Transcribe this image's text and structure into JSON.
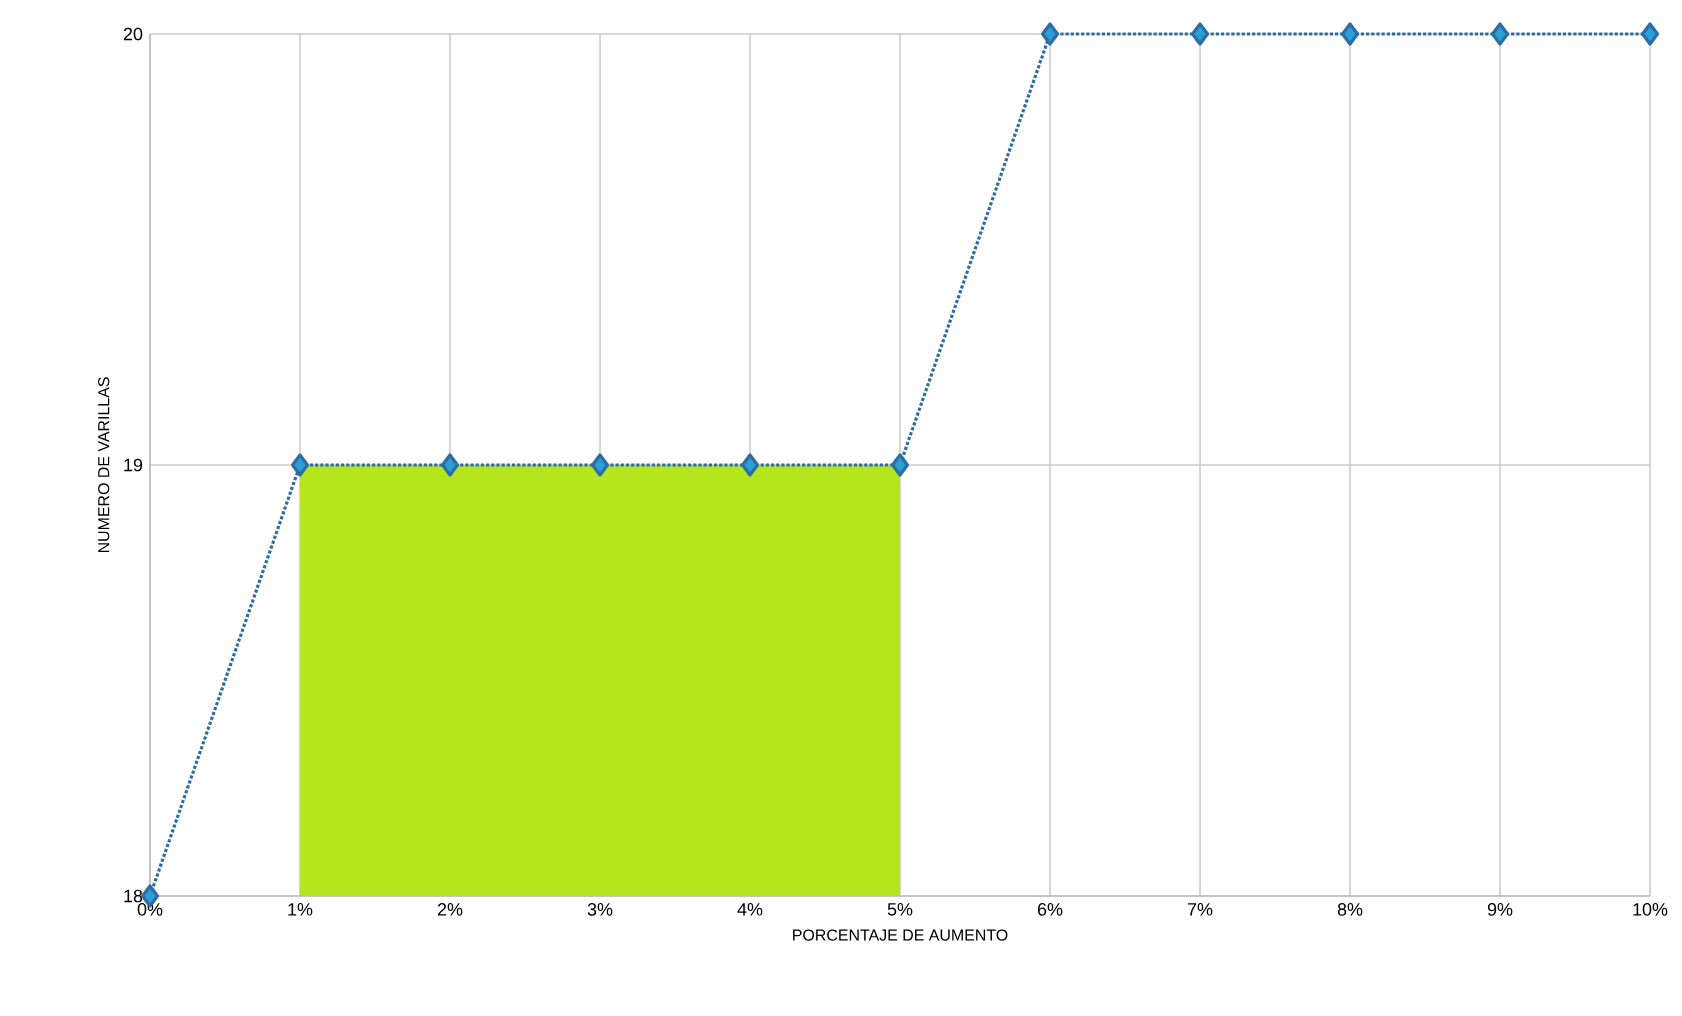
{
  "chart_data": {
    "type": "line",
    "xlabel": "PORCENTAJE DE AUMENTO",
    "ylabel": "NUMERO DE VARILLAS",
    "x": [
      0,
      1,
      2,
      3,
      4,
      5,
      6,
      7,
      8,
      9,
      10
    ],
    "series": [
      {
        "type": "area",
        "color": "#b5e61d",
        "x": [
          1,
          5
        ],
        "values": [
          19,
          19
        ]
      },
      {
        "color": "#2e6da4",
        "values": [
          18,
          19,
          19,
          19,
          19,
          19,
          20,
          20,
          20,
          20,
          20
        ],
        "marker": "diamond",
        "line_style": "dotted"
      }
    ],
    "xlim": [
      0,
      10
    ],
    "xticks": [
      {
        "value": 0,
        "label": "0%"
      },
      {
        "value": 1,
        "label": "1%"
      },
      {
        "value": 2,
        "label": "2%"
      },
      {
        "value": 3,
        "label": "3%"
      },
      {
        "value": 4,
        "label": "4%"
      },
      {
        "value": 5,
        "label": "5%"
      },
      {
        "value": 6,
        "label": "6%"
      },
      {
        "value": 7,
        "label": "7%"
      },
      {
        "value": 8,
        "label": "8%"
      },
      {
        "value": 9,
        "label": "9%"
      },
      {
        "value": 10,
        "label": "10%"
      }
    ],
    "ylim": [
      18,
      20
    ],
    "yticks": [
      18,
      19,
      20
    ],
    "grid": true
  }
}
